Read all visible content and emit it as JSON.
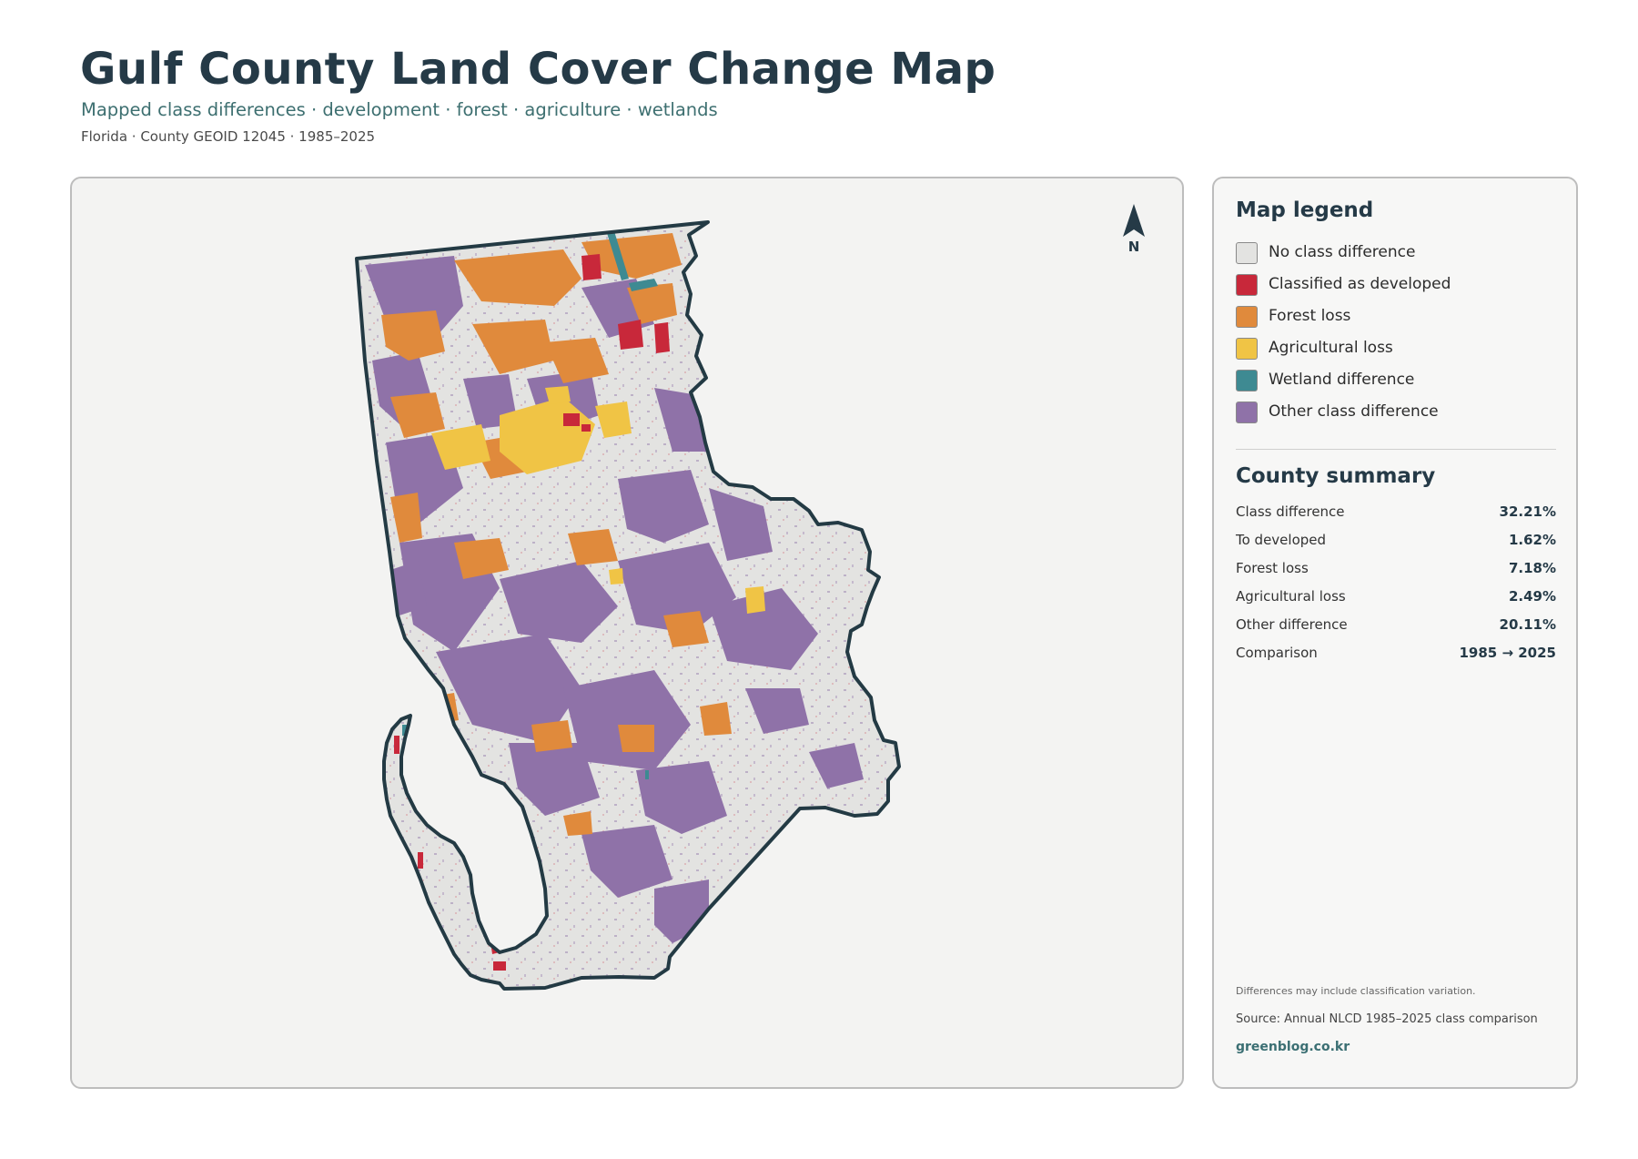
{
  "header": {
    "title": "Gulf County Land Cover Change Map",
    "subtitle": "Mapped class differences · development · forest · agriculture · wetlands",
    "meta": "Florida · County GEOID 12045 · 1985–2025"
  },
  "map": {
    "north_label": "N",
    "colors": {
      "no_difference": "#e3e3e1",
      "developed": "#c8283a",
      "forest_loss": "#e08a3c",
      "agricultural_loss": "#f0c445",
      "wetland": "#3e8a92",
      "other": "#8f72a8",
      "outline": "#233a44"
    }
  },
  "legend": {
    "title": "Map legend",
    "items": [
      {
        "label": "No class difference",
        "color": "#e3e3e1"
      },
      {
        "label": "Classified as developed",
        "color": "#c8283a"
      },
      {
        "label": "Forest loss",
        "color": "#e08a3c"
      },
      {
        "label": "Agricultural loss",
        "color": "#f0c445"
      },
      {
        "label": "Wetland difference",
        "color": "#3e8a92"
      },
      {
        "label": "Other class difference",
        "color": "#8f72a8"
      }
    ]
  },
  "summary": {
    "title": "County summary",
    "rows": [
      {
        "label": "Class difference",
        "value": "32.21%"
      },
      {
        "label": "To developed",
        "value": "1.62%"
      },
      {
        "label": "Forest loss",
        "value": "7.18%"
      },
      {
        "label": "Agricultural loss",
        "value": "2.49%"
      },
      {
        "label": "Other difference",
        "value": "20.11%"
      },
      {
        "label": "Comparison",
        "value": "1985 → 2025"
      }
    ]
  },
  "footer": {
    "note": "Differences may include classification variation.",
    "source": "Source: Annual NLCD 1985–2025 class comparison",
    "site": "greenblog.co.kr"
  }
}
